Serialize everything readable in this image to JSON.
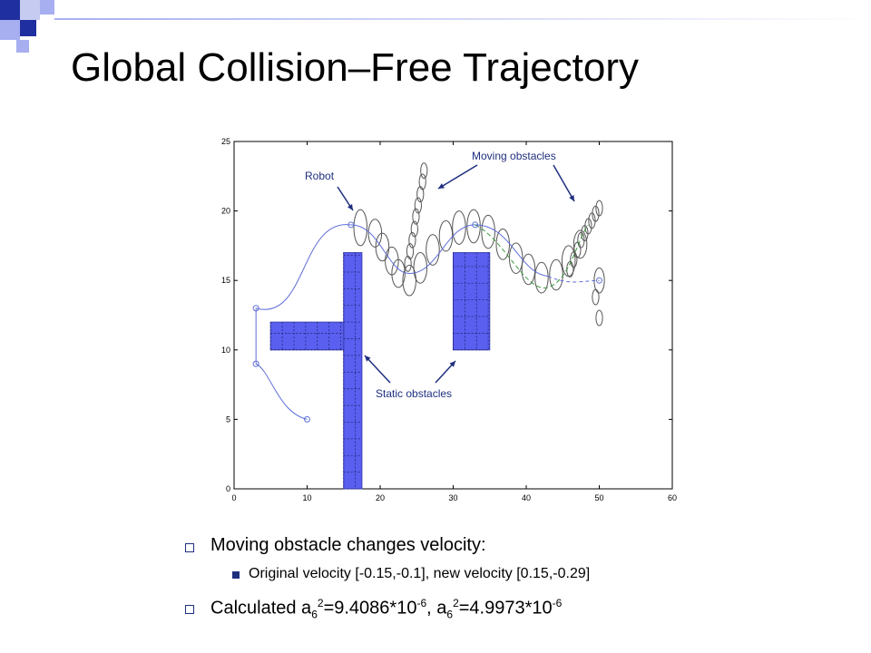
{
  "slide": {
    "title": "Global Collision–Free Trajectory",
    "accent_colors": {
      "dark_blue": "#1f2f9f",
      "light_blue": "#a7aff0",
      "obstacle_blue": "#5a5ff0",
      "robot_path": "#5f6fd8",
      "moving_path": "#3a9a3a"
    }
  },
  "chart_data": {
    "type": "scatter",
    "xlim": [
      0,
      60
    ],
    "ylim": [
      0,
      25
    ],
    "xticks": [
      "0",
      "10",
      "20",
      "30",
      "40",
      "50",
      "60"
    ],
    "yticks": [
      "0",
      "5",
      "10",
      "15",
      "20",
      "25"
    ],
    "grid": false,
    "annotations": {
      "robot": "Robot",
      "moving": "Moving obstacles",
      "static": "Static obstacles"
    },
    "robot_path": [
      [
        10,
        5
      ],
      [
        3,
        9
      ],
      [
        3,
        13
      ],
      [
        16,
        19
      ],
      [
        23,
        15.5
      ],
      [
        33,
        19
      ],
      [
        43,
        15
      ],
      [
        50,
        15
      ]
    ],
    "static_obstacles": [
      {
        "x": [
          15,
          17.5
        ],
        "y": [
          0,
          17
        ]
      },
      {
        "x": [
          5,
          15
        ],
        "y": [
          10,
          12
        ]
      },
      {
        "x": [
          30,
          35
        ],
        "y": [
          10,
          17
        ]
      }
    ]
  },
  "bullets": {
    "item1": "Moving obstacle changes velocity:",
    "item1_sub": "Original velocity [-0.15,-0.1], new velocity [0.15,-0.29]",
    "item2_prefix": "Calculated a",
    "item2_sub1": "6",
    "item2_sup1": "2",
    "item2_mid": "=9.4086*10",
    "item2_exp1": "-6",
    "item2_sep": ", a",
    "item2_sub2": "6",
    "item2_sup2": "2",
    "item2_val2": "=4.9973*10",
    "item2_exp2": "-6"
  }
}
